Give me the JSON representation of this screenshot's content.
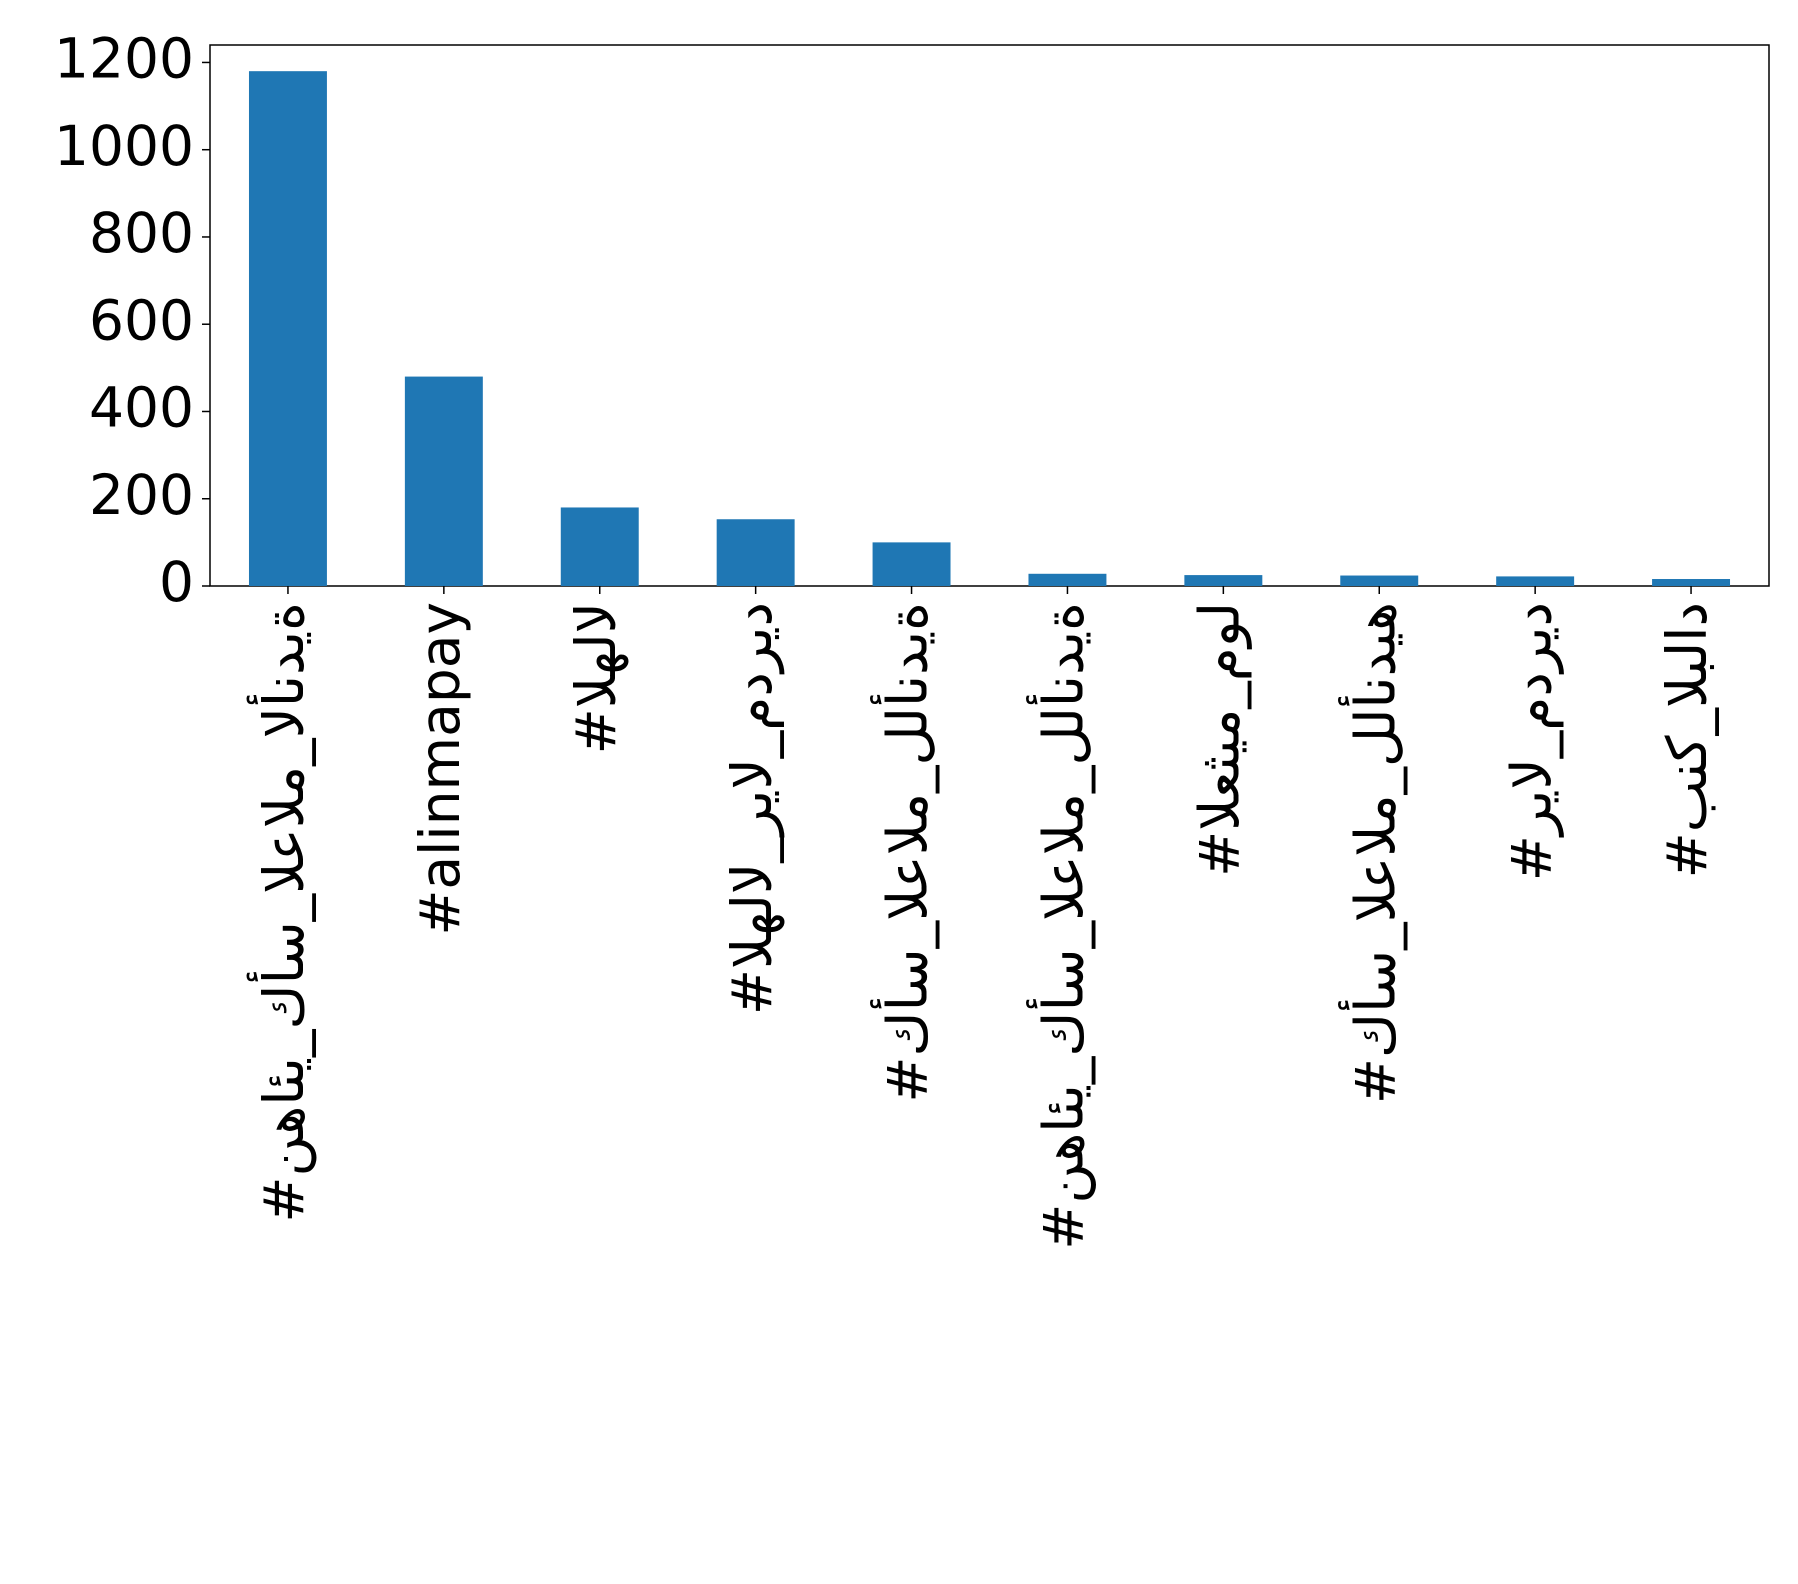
{
  "chart_data": {
    "type": "bar",
    "categories": [
      "#نهائي_كأس_العالم_الأندية",
      "#alinmapay",
      "#الهلال",
      "#الهلال_ريال_مدريد",
      "#كأس_العالم_للأندية",
      "#نهائي_كأس_العالم_للأندية",
      "#العثيم_مول",
      "#كأس_العالم_للأنديه",
      "#ريال_مدريد",
      "#بنك_البلاد"
    ],
    "values": [
      1180,
      480,
      180,
      153,
      100,
      28,
      25,
      24,
      22,
      16
    ],
    "color": "#1f77b4",
    "ylim": [
      0,
      1240
    ],
    "yticks": [
      0,
      200,
      400,
      600,
      800,
      1000,
      1200
    ],
    "grid": false
  }
}
